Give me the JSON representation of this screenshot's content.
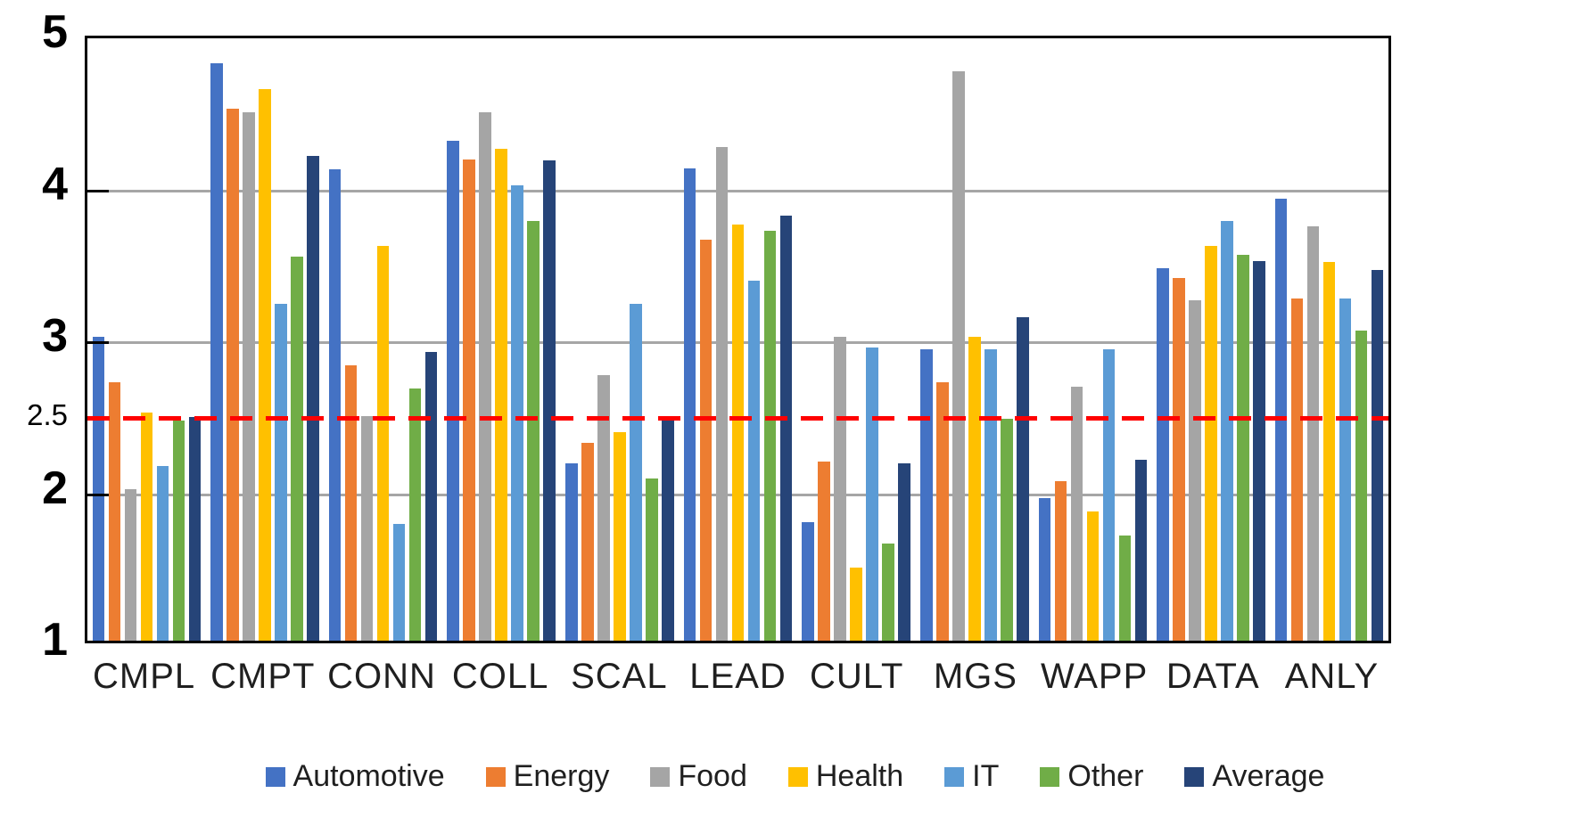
{
  "chart_data": {
    "type": "bar",
    "title": "",
    "categories": [
      "CMPL",
      "CMPT",
      "CONN",
      "COLL",
      "SCAL",
      "LEAD",
      "CULT",
      "MGS",
      "WAPP",
      "DATA",
      "ANLY"
    ],
    "series": [
      {
        "name": "Automotive",
        "color": "#4472C4",
        "values": [
          3.0,
          4.8,
          4.1,
          4.29,
          2.17,
          4.11,
          1.78,
          2.92,
          1.94,
          3.45,
          3.91
        ]
      },
      {
        "name": "Energy",
        "color": "#ED7D31",
        "values": [
          2.7,
          4.5,
          2.81,
          4.17,
          2.3,
          3.64,
          2.18,
          2.7,
          2.05,
          3.39,
          3.25
        ]
      },
      {
        "name": "Food",
        "color": "#A5A5A5",
        "values": [
          2.0,
          4.48,
          2.48,
          4.48,
          2.75,
          4.25,
          3.0,
          4.75,
          2.67,
          3.24,
          3.73
        ]
      },
      {
        "name": "Health",
        "color": "#FFC000",
        "values": [
          2.5,
          4.63,
          3.6,
          4.24,
          2.37,
          3.74,
          1.48,
          3.0,
          1.85,
          3.6,
          3.49
        ]
      },
      {
        "name": "IT",
        "color": "#5B9BD5",
        "values": [
          2.15,
          3.22,
          1.77,
          4.0,
          3.22,
          3.37,
          2.93,
          2.92,
          2.92,
          3.76,
          3.25
        ]
      },
      {
        "name": "Other",
        "color": "#70AD47",
        "values": [
          2.45,
          3.53,
          2.66,
          3.76,
          2.07,
          3.7,
          1.64,
          2.46,
          1.69,
          3.54,
          3.04
        ]
      },
      {
        "name": "Average",
        "color": "#264478",
        "values": [
          2.47,
          4.19,
          2.9,
          4.16,
          2.48,
          3.8,
          2.17,
          3.13,
          2.19,
          3.5,
          3.44
        ]
      }
    ],
    "y_axis": {
      "min": 1,
      "max": 5,
      "tick_labels": [
        "5",
        "4",
        "3",
        "2.5",
        "2",
        "1"
      ],
      "tick_values": [
        5,
        4,
        3,
        2.5,
        2,
        1
      ],
      "major_ticks": [
        5,
        4,
        3,
        2,
        1
      ],
      "gridlines_at": [
        4,
        3,
        2
      ]
    },
    "reference_line": {
      "value": 2.5,
      "color": "#FF0000",
      "style": "dashed"
    },
    "legend_position": "bottom",
    "grid_color": "#A6A6A6",
    "axis_color": "#000000",
    "background": "#FFFFFF"
  }
}
